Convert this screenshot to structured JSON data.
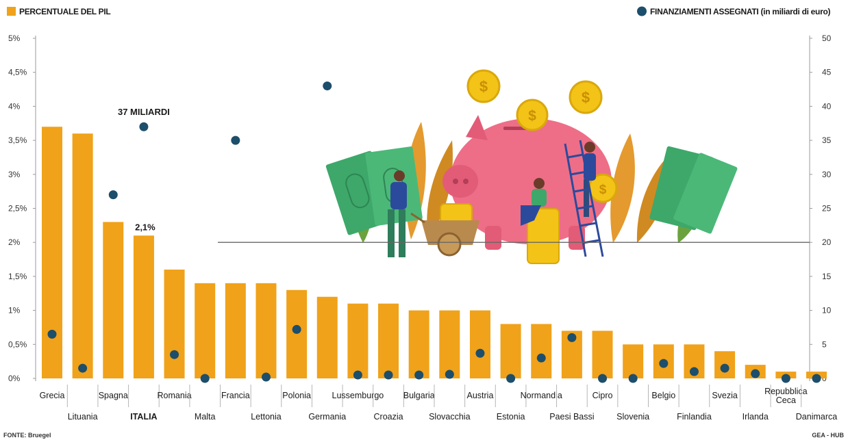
{
  "chart_data": {
    "type": "bar",
    "legend": {
      "bars_label": "PERCENTUALE DEL PIL",
      "dots_label": "FINANZIAMENTI ASSEGNATI (in miliardi di euro)"
    },
    "categories": [
      "Grecia",
      "Lituania",
      "Spagna",
      "ITALIA",
      "Romania",
      "Malta",
      "Francia",
      "Lettonia",
      "Polonia",
      "Germania",
      "Lussemburgo",
      "Croazia",
      "Bulgaria",
      "Slovacchia",
      "Austria",
      "Estonia",
      "Normandia",
      "Paesi Bassi",
      "Cipro",
      "Slovenia",
      "Belgio",
      "Finlandia",
      "Svezia",
      "Irlanda",
      "Repubblica Ceca",
      "Danimarca"
    ],
    "category_label_lines": [
      [
        "Grecia"
      ],
      [
        "Lituania"
      ],
      [
        "Spagna"
      ],
      [
        "ITALIA"
      ],
      [
        "Romania"
      ],
      [
        "Malta"
      ],
      [
        "Francia"
      ],
      [
        "Lettonia"
      ],
      [
        "Polonia"
      ],
      [
        "Germania"
      ],
      [
        "Lussemburgo"
      ],
      [
        "Croazia"
      ],
      [
        "Bulgaria"
      ],
      [
        "Slovacchia"
      ],
      [
        "Austria"
      ],
      [
        "Estonia"
      ],
      [
        "Normandia"
      ],
      [
        "Paesi Bassi"
      ],
      [
        "Cipro"
      ],
      [
        "Slovenia"
      ],
      [
        "Belgio"
      ],
      [
        "Finlandia"
      ],
      [
        "Svezia"
      ],
      [
        "Irlanda"
      ],
      [
        "Repubblica",
        "Ceca"
      ],
      [
        "Danimarca"
      ]
    ],
    "series": [
      {
        "name": "PERCENTUALE DEL PIL",
        "axis": "left",
        "color": "#F0A21A",
        "values": [
          3.7,
          3.6,
          2.3,
          2.1,
          1.6,
          1.4,
          1.4,
          1.4,
          1.3,
          1.2,
          1.1,
          1.1,
          1.0,
          1.0,
          1.0,
          0.8,
          0.8,
          0.7,
          0.7,
          0.5,
          0.5,
          0.5,
          0.4,
          0.2,
          0.1,
          0.1
        ]
      },
      {
        "name": "FINANZIAMENTI ASSEGNATI (in miliardi di euro)",
        "axis": "right",
        "color": "#1D4E6B",
        "values": [
          6.5,
          1.5,
          27,
          37,
          3.5,
          0,
          35,
          0.2,
          7.2,
          43,
          0.5,
          0.5,
          0.5,
          0.6,
          3.7,
          0,
          3,
          6,
          0,
          0,
          2.2,
          1,
          1.5,
          0.7,
          0,
          0
        ]
      }
    ],
    "y_left": {
      "min": 0,
      "max": 5,
      "ticks": [
        "0%",
        "0,5%",
        "1%",
        "1,5%",
        "2%",
        "2,5%",
        "3%",
        "3,5%",
        "4%",
        "4,5%",
        "5%"
      ]
    },
    "y_right": {
      "min": 0,
      "max": 50,
      "ticks": [
        "0",
        "5",
        "10",
        "15",
        "20",
        "25",
        "30",
        "35",
        "40",
        "45",
        "50"
      ]
    },
    "grid": false,
    "annotations": [
      {
        "text": "37 MILIARDI",
        "category": "ITALIA",
        "series": "FINANZIAMENTI ASSEGNATI (in miliardi di euro)"
      },
      {
        "text": "2,1%",
        "category": "ITALIA",
        "series": "PERCENTUALE DEL PIL"
      }
    ],
    "reference_line_right_value": 20
  },
  "footer": {
    "source": "FONTE: Bruegel",
    "credit": "GEA - HUB"
  },
  "colors": {
    "bar": "#F0A21A",
    "dot": "#1D4E6B",
    "pig": "#EE6E87",
    "coin": "#F3C317",
    "money": "#3DA86A",
    "leaf": "#E49A2E",
    "leaf_green": "#6BA23E"
  }
}
